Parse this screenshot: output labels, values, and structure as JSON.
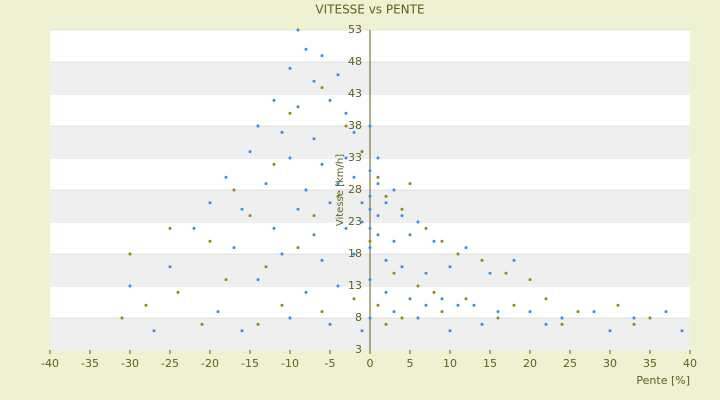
{
  "chart_data": {
    "type": "scatter",
    "title": "VITESSE vs PENTE",
    "x_label": "Pente [%]",
    "y_label": "Vitesse [km/h]",
    "xlim": [
      -40,
      40
    ],
    "xticks": [
      -40,
      -35,
      -30,
      -25,
      -20,
      -15,
      -10,
      -5,
      0,
      5,
      10,
      15,
      20,
      25,
      30,
      35,
      40
    ],
    "ylim": [
      3,
      53
    ],
    "yticks": [
      3,
      8,
      13,
      18,
      23,
      28,
      33,
      38,
      43,
      48,
      53
    ],
    "grid": true,
    "series": [
      {
        "color": "#3a8fde",
        "x": [
          -9,
          -8,
          -6,
          -10,
          -7,
          -4,
          -12,
          -9,
          -5,
          -3,
          -14,
          -11,
          -7,
          -2,
          0,
          -15,
          -10,
          -6,
          -3,
          -1,
          1,
          -18,
          -13,
          -8,
          -4,
          -2,
          0,
          1,
          3,
          -20,
          -16,
          -9,
          -5,
          -1,
          0,
          0,
          1,
          2,
          4,
          6,
          -22,
          -12,
          -7,
          -3,
          -1,
          0,
          1,
          3,
          5,
          8,
          12,
          -30,
          -25,
          -17,
          -11,
          -6,
          -2,
          0,
          2,
          4,
          7,
          10,
          15,
          18,
          -14,
          -8,
          -4,
          0,
          2,
          5,
          7,
          9,
          11,
          13,
          16,
          20,
          24,
          28,
          33,
          37,
          -19,
          -10,
          -5,
          0,
          3,
          6,
          14,
          22,
          30,
          39,
          -27,
          -16,
          -1,
          10
        ],
        "values": [
          53,
          50,
          49,
          47,
          45,
          46,
          42,
          41,
          42,
          40,
          38,
          37,
          36,
          37,
          38,
          34,
          33,
          32,
          33,
          34,
          33,
          30,
          29,
          28,
          29,
          30,
          31,
          29,
          28,
          26,
          25,
          25,
          26,
          26,
          27,
          25,
          24,
          26,
          24,
          23,
          22,
          22,
          21,
          22,
          23,
          22,
          21,
          20,
          21,
          20,
          19,
          13,
          16,
          19,
          18,
          17,
          18,
          19,
          17,
          16,
          15,
          16,
          15,
          17,
          14,
          12,
          13,
          14,
          12,
          11,
          10,
          11,
          10,
          10,
          9,
          9,
          8,
          9,
          8,
          9,
          9,
          8,
          7,
          8,
          9,
          8,
          7,
          7,
          6,
          6,
          6,
          6,
          6,
          6
        ]
      },
      {
        "color": "#8c8c1c",
        "x": [
          -25,
          -30,
          -20,
          -15,
          -17,
          -12,
          -10,
          -6,
          -3,
          -1,
          1,
          2,
          4,
          5,
          7,
          9,
          11,
          14,
          17,
          20,
          -24,
          -18,
          -13,
          -9,
          -7,
          -4,
          0,
          3,
          6,
          8,
          12,
          18,
          22,
          26,
          31,
          35,
          -28,
          -21,
          -11,
          -6,
          -2,
          1,
          4,
          9,
          16,
          24,
          33,
          -31,
          -14,
          2
        ],
        "values": [
          22,
          18,
          20,
          24,
          28,
          32,
          40,
          44,
          38,
          34,
          30,
          27,
          25,
          29,
          22,
          20,
          18,
          17,
          15,
          14,
          12,
          14,
          16,
          19,
          24,
          27,
          20,
          15,
          13,
          12,
          11,
          10,
          11,
          9,
          10,
          8,
          10,
          7,
          10,
          9,
          11,
          10,
          8,
          9,
          8,
          7,
          7,
          8,
          7,
          7
        ]
      }
    ]
  }
}
